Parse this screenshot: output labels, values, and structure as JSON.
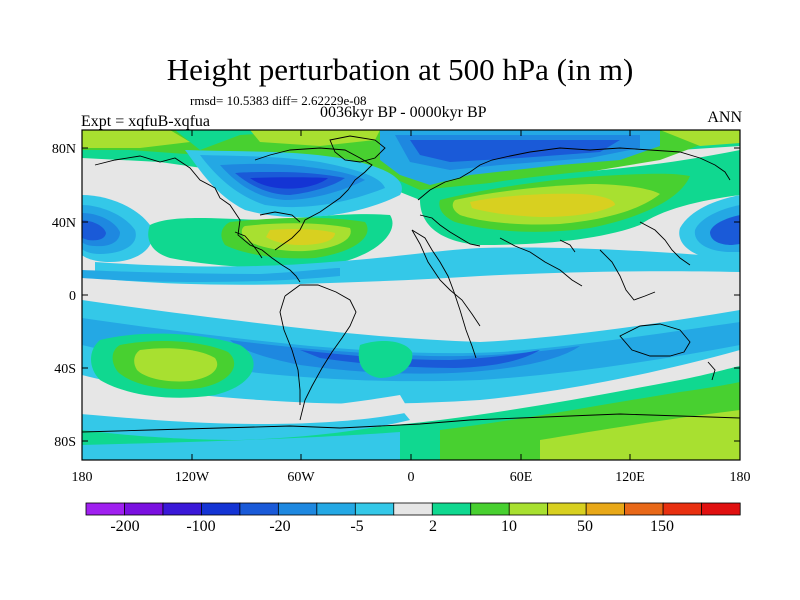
{
  "header": {
    "title": "Height perturbation at 500 hPa (in m)",
    "stats": "rmsd= 10.5383 diff= 2.62229e-08",
    "experiment": "Expt = xqfuB-xqfua",
    "period": "0036kyr BP - 0000kyr BP",
    "season": "ANN"
  },
  "axes": {
    "lat_labels": [
      "80N",
      "40N",
      "0",
      "40S",
      "80S"
    ],
    "lon_labels": [
      "180",
      "120W",
      "60W",
      "0",
      "60E",
      "120E",
      "180"
    ]
  },
  "colorbar": {
    "colors": [
      "#a020f0",
      "#7a10e0",
      "#3a18d8",
      "#1434d4",
      "#1a5ad8",
      "#1e88e0",
      "#24a8e4",
      "#34c8e8",
      "#e6e6e6",
      "#10d890",
      "#48d030",
      "#a8e030",
      "#d8d020",
      "#e8a818",
      "#e86818",
      "#e83010",
      "#e01010"
    ],
    "labels": [
      "-200",
      "-100",
      "-20",
      "-5",
      "2",
      "10",
      "50",
      "150"
    ]
  },
  "map_colors": {
    "ocean": "#e6e6e6",
    "coast": "#000000"
  }
}
